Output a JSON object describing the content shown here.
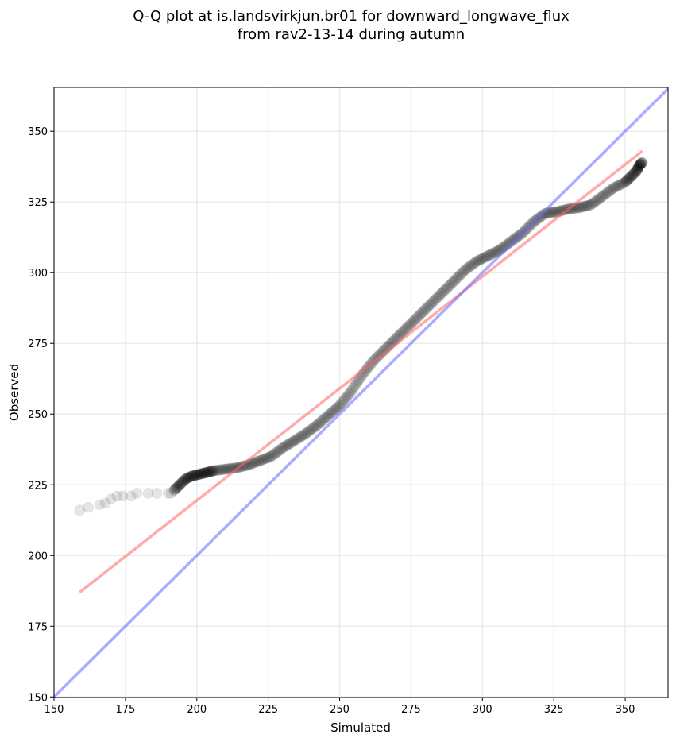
{
  "chart_data": {
    "type": "scatter",
    "title_line1": "Q-Q plot at is.landsvirkjun.br01 for downward_longwave_flux",
    "title_line2": "from rav2-13-14 during autumn",
    "xlabel": "Simulated",
    "ylabel": "Observed",
    "xlim": [
      150,
      365
    ],
    "ylim": [
      149.8,
      365.5
    ],
    "xticks": [
      150,
      175,
      200,
      225,
      250,
      275,
      300,
      325,
      350
    ],
    "yticks": [
      150,
      175,
      200,
      225,
      250,
      275,
      300,
      325,
      350
    ],
    "grid": true,
    "sparse_points": [
      [
        159,
        216
      ],
      [
        162,
        217
      ],
      [
        166,
        218
      ],
      [
        168,
        218.5
      ],
      [
        170,
        220
      ],
      [
        172,
        221
      ],
      [
        174,
        221
      ],
      [
        177,
        221
      ],
      [
        179,
        222
      ],
      [
        183,
        222
      ],
      [
        186,
        222
      ],
      [
        190,
        222
      ],
      [
        191,
        222
      ]
    ],
    "dense_curve": [
      [
        192,
        223
      ],
      [
        194,
        225
      ],
      [
        196,
        227
      ],
      [
        198,
        228
      ],
      [
        200,
        228.5
      ],
      [
        202,
        229
      ],
      [
        204,
        229.5
      ],
      [
        206,
        230
      ],
      [
        210,
        230.5
      ],
      [
        214,
        231
      ],
      [
        218,
        232
      ],
      [
        222,
        233.5
      ],
      [
        226,
        235
      ],
      [
        230,
        238
      ],
      [
        234,
        240.5
      ],
      [
        238,
        243
      ],
      [
        242,
        246
      ],
      [
        246,
        249.5
      ],
      [
        250,
        253
      ],
      [
        254,
        258
      ],
      [
        258,
        264
      ],
      [
        262,
        269
      ],
      [
        266,
        273
      ],
      [
        270,
        277
      ],
      [
        274,
        281
      ],
      [
        278,
        285
      ],
      [
        282,
        289
      ],
      [
        286,
        293
      ],
      [
        290,
        297
      ],
      [
        294,
        301
      ],
      [
        298,
        304
      ],
      [
        302,
        306
      ],
      [
        306,
        308
      ],
      [
        310,
        311
      ],
      [
        314,
        314
      ],
      [
        318,
        318
      ],
      [
        322,
        321
      ],
      [
        326,
        321.5
      ],
      [
        330,
        322.5
      ],
      [
        334,
        323
      ],
      [
        338,
        324
      ],
      [
        342,
        327
      ],
      [
        346,
        330
      ],
      [
        350,
        332
      ],
      [
        352,
        334
      ],
      [
        354,
        336
      ],
      [
        355,
        338
      ],
      [
        356,
        339
      ]
    ],
    "fit_line": {
      "x": [
        159,
        356
      ],
      "y": [
        187,
        343
      ],
      "color": "#ff6666"
    },
    "identity_line": {
      "x": [
        150,
        365
      ],
      "y": [
        150,
        365
      ],
      "color": "#6666ff"
    }
  }
}
